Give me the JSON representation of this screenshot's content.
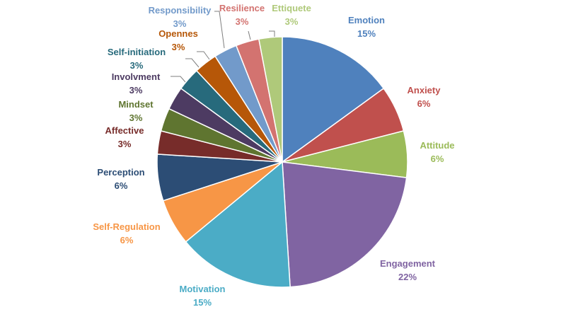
{
  "chart_data": {
    "type": "pie",
    "title": "",
    "legend": "none",
    "slices": [
      {
        "category": "Emotion",
        "value": 15,
        "label": "15%",
        "color": "#4F81BD"
      },
      {
        "category": "Anxiety",
        "value": 6,
        "label": "6%",
        "color": "#C0504D"
      },
      {
        "category": "Attitude",
        "value": 6,
        "label": "6%",
        "color": "#9BBB59"
      },
      {
        "category": "Engagement",
        "value": 22,
        "label": "22%",
        "color": "#8064A2"
      },
      {
        "category": "Motivation",
        "value": 15,
        "label": "15%",
        "color": "#4BACC6"
      },
      {
        "category": "Self-Regulation",
        "value": 6,
        "label": "6%",
        "color": "#F79646"
      },
      {
        "category": "Perception",
        "value": 6,
        "label": "6%",
        "color": "#2C4D75"
      },
      {
        "category": "Affective",
        "value": 3,
        "label": "3%",
        "color": "#772C2A"
      },
      {
        "category": "Mindset",
        "value": 3,
        "label": "3%",
        "color": "#5F7530"
      },
      {
        "category": "Involvment",
        "value": 3,
        "label": "3%",
        "color": "#4D3B62"
      },
      {
        "category": "Self-initiation",
        "value": 3,
        "label": "3%",
        "color": "#276A7C"
      },
      {
        "category": "Opennes",
        "value": 3,
        "label": "3%",
        "color": "#B65708"
      },
      {
        "category": "Responsibility",
        "value": 3,
        "label": "3%",
        "color": "#729ACA"
      },
      {
        "category": "Resilience",
        "value": 3,
        "label": "3%",
        "color": "#D37370"
      },
      {
        "category": "Ettiquete",
        "value": 3,
        "label": "3%",
        "color": "#AFC97A"
      }
    ]
  }
}
